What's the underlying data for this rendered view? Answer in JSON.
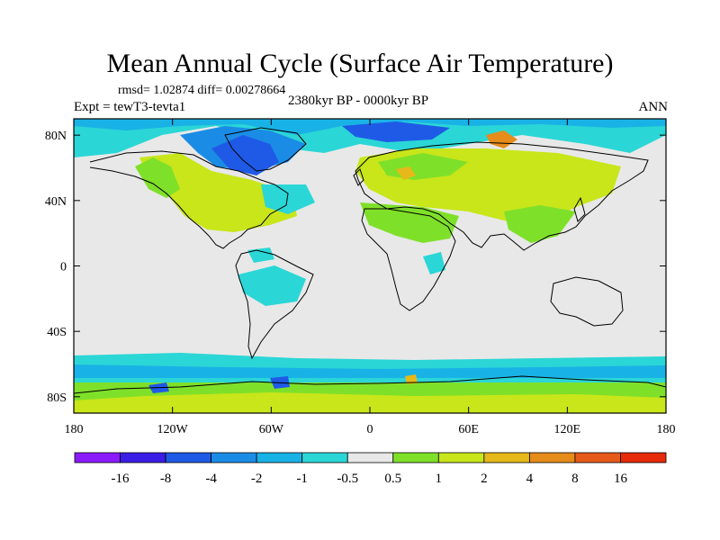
{
  "figure": {
    "title": "Mean Annual Cycle (Surface Air Temperature)",
    "stats": "rmsd= 1.02874  diff= 0.00278664",
    "expt": "Expt = tewT3-tevta1",
    "period": "2380kyr BP - 0000kyr BP",
    "season": "ANN"
  },
  "axes": {
    "lon_labels": [
      "180",
      "120W",
      "60W",
      "0",
      "60E",
      "120E",
      "180"
    ],
    "lat_labels": [
      "80N",
      "40N",
      "0",
      "40S",
      "80S"
    ],
    "lon_values": [
      -180,
      -120,
      -60,
      0,
      60,
      120,
      180
    ],
    "lat_values": [
      80,
      40,
      0,
      -40,
      -80
    ],
    "lon_range": [
      -180,
      180
    ],
    "lat_range": [
      -90,
      90
    ]
  },
  "colorbar": {
    "labels": [
      "-16",
      "-8",
      "-4",
      "-2",
      "-1",
      "-0.5",
      "0.5",
      "1",
      "2",
      "4",
      "8",
      "16"
    ],
    "colors": [
      "#8c1aff",
      "#3a1ee6",
      "#1f5ae6",
      "#1a8ce6",
      "#19b2e6",
      "#2bd6d6",
      "#e8e8e8",
      "#7fe02a",
      "#c8e61a",
      "#e6b81a",
      "#e68c1a",
      "#e65a1a",
      "#e62a0a"
    ]
  },
  "colors": {
    "background": "#e8e8e8",
    "coastline": "#000000"
  }
}
